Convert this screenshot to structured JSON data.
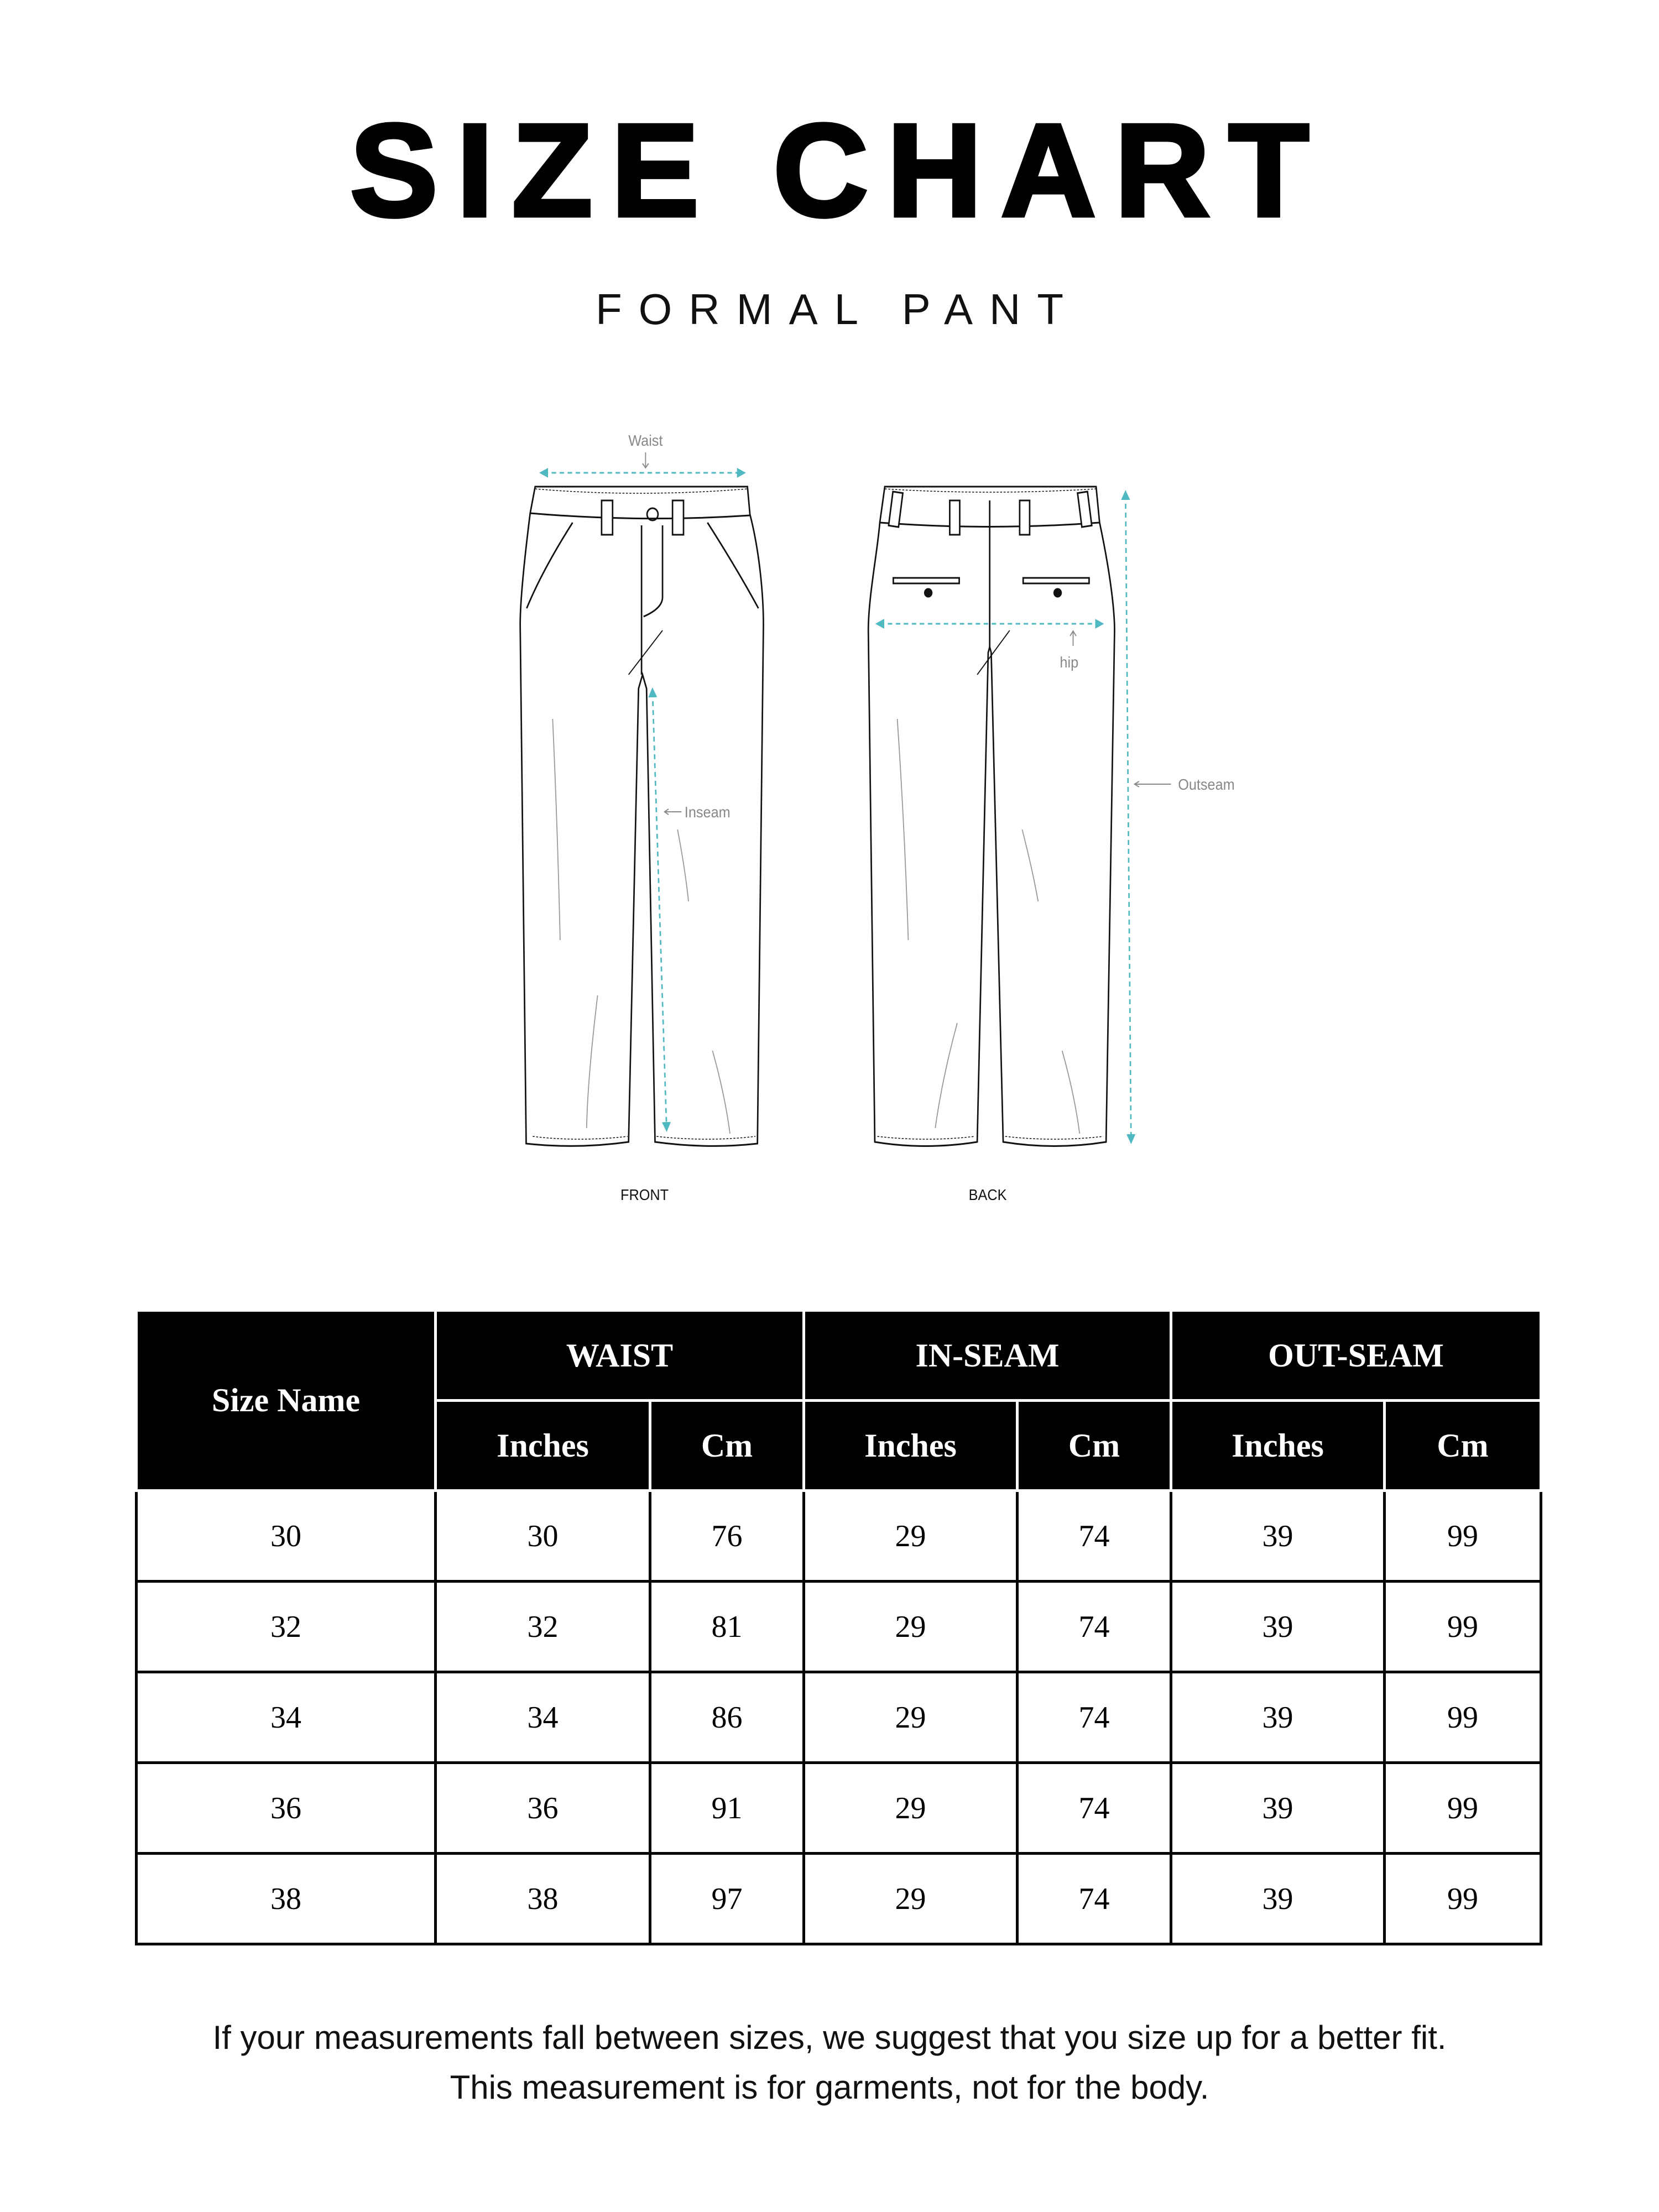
{
  "header": {
    "title": "SIZE CHART",
    "subtitle": "FORMAL PANT"
  },
  "illustration": {
    "labels": {
      "waist": "Waist",
      "inseam": "Inseam",
      "hip": "hip",
      "outseam": "Outseam"
    },
    "views": {
      "front": "FRONT",
      "back": "BACK"
    },
    "colors": {
      "measure_arrow": "#4fb8c0",
      "label": "#888888"
    }
  },
  "table": {
    "size_header": "Size Name",
    "groups": [
      "WAIST",
      "IN-SEAM",
      "OUT-SEAM"
    ],
    "units": [
      "Inches",
      "Cm",
      "Inches",
      "Cm",
      "Inches",
      "Cm"
    ],
    "rows": [
      [
        "30",
        "30",
        "76",
        "29",
        "74",
        "39",
        "99"
      ],
      [
        "32",
        "32",
        "81",
        "29",
        "74",
        "39",
        "99"
      ],
      [
        "34",
        "34",
        "86",
        "29",
        "74",
        "39",
        "99"
      ],
      [
        "36",
        "36",
        "91",
        "29",
        "74",
        "39",
        "99"
      ],
      [
        "38",
        "38",
        "97",
        "29",
        "74",
        "39",
        "99"
      ]
    ]
  },
  "footer": {
    "line1": "If your measurements fall between sizes, we suggest that you size up for a better fit.",
    "line2": "This measurement is for garments, not for the body."
  }
}
